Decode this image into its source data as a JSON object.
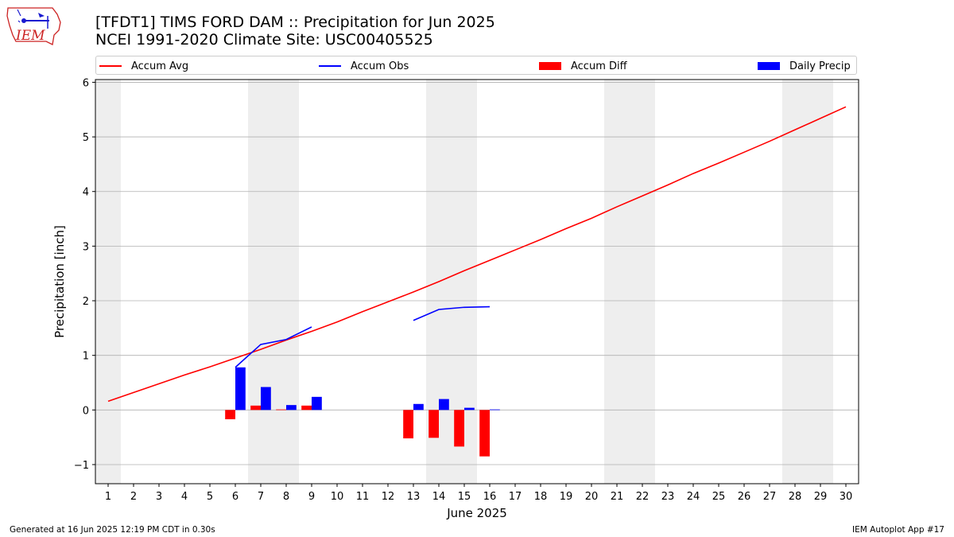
{
  "header": {
    "title_line1": "[TFDT1] TIMS FORD DAM :: Precipitation for Jun 2025",
    "title_line2": "NCEI 1991-2020 Climate Site: USC00405525",
    "logo_text": "IEM"
  },
  "legend": {
    "items": [
      {
        "label": "Accum Avg",
        "kind": "line",
        "color": "#ff0000"
      },
      {
        "label": "Accum Obs",
        "kind": "line",
        "color": "#0000ff"
      },
      {
        "label": "Accum Diff",
        "kind": "bar",
        "color": "#ff0000"
      },
      {
        "label": "Daily Precip",
        "kind": "bar",
        "color": "#0000ff"
      }
    ]
  },
  "footer": {
    "left": "Generated at 16 Jun 2025 12:19 PM CDT in 0.30s",
    "right": "IEM Autoplot App #17"
  },
  "chart_data": {
    "type": "bar",
    "xlabel": "June 2025",
    "ylabel": "Precipitation [inch]",
    "xlim": [
      0.5,
      30.5
    ],
    "ylim": [
      -1.35,
      6.05
    ],
    "x_ticks": [
      1,
      2,
      3,
      4,
      5,
      6,
      7,
      8,
      9,
      10,
      11,
      12,
      13,
      14,
      15,
      16,
      17,
      18,
      19,
      20,
      21,
      22,
      23,
      24,
      25,
      26,
      27,
      28,
      29,
      30
    ],
    "y_ticks": [
      -1,
      0,
      1,
      2,
      3,
      4,
      5,
      6
    ],
    "y_tick_labels": [
      "−1",
      "0",
      "1",
      "2",
      "3",
      "4",
      "5",
      "6"
    ],
    "grid": "horizontal",
    "legend_position": "top, above plot",
    "weekend_shading_color": "#eeeeee",
    "weekend_shaded_days": [
      1,
      7,
      8,
      14,
      15,
      21,
      22,
      28,
      29
    ],
    "series": [
      {
        "name": "Accum Avg",
        "type": "line",
        "color": "#ff0000",
        "x": [
          1,
          2,
          3,
          4,
          5,
          6,
          7,
          8,
          9,
          10,
          11,
          12,
          13,
          14,
          15,
          16,
          17,
          18,
          19,
          20,
          21,
          22,
          23,
          24,
          25,
          26,
          27,
          28,
          29,
          30
        ],
        "values": [
          0.16,
          0.32,
          0.48,
          0.64,
          0.79,
          0.95,
          1.11,
          1.28,
          1.44,
          1.61,
          1.8,
          1.98,
          2.16,
          2.35,
          2.55,
          2.74,
          2.93,
          3.12,
          3.32,
          3.51,
          3.72,
          3.92,
          4.12,
          4.33,
          4.52,
          4.72,
          4.92,
          5.13,
          5.34,
          5.55
        ]
      },
      {
        "name": "Accum Obs",
        "type": "line",
        "color": "#0000ff",
        "segments": [
          {
            "x": [
              6,
              7,
              8,
              9
            ],
            "values": [
              0.78,
              1.2,
              1.29,
              1.52
            ]
          },
          {
            "x": [
              13,
              14,
              15,
              16
            ],
            "values": [
              1.64,
              1.84,
              1.88,
              1.89
            ]
          }
        ]
      },
      {
        "name": "Accum Diff",
        "type": "bar",
        "color": "#ff0000",
        "x": [
          6,
          7,
          8,
          9,
          13,
          14,
          15,
          16
        ],
        "values": [
          -0.17,
          0.08,
          0.01,
          0.08,
          -0.52,
          -0.51,
          -0.67,
          -0.85
        ]
      },
      {
        "name": "Daily Precip",
        "type": "bar",
        "color": "#0000ff",
        "x": [
          6,
          7,
          8,
          9,
          13,
          14,
          15,
          16
        ],
        "values": [
          0.78,
          0.42,
          0.09,
          0.24,
          0.11,
          0.2,
          0.04,
          0.01
        ]
      }
    ]
  }
}
